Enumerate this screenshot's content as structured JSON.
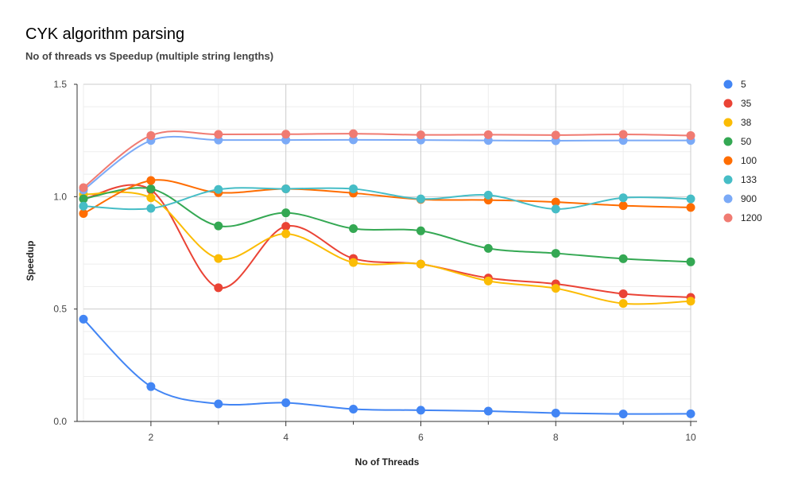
{
  "chart_data": {
    "type": "line",
    "title": "CYK algorithm parsing",
    "subtitle": "No of threads vs Speedup (multiple string lengths)",
    "xlabel": "No of Threads",
    "ylabel": "Speedup",
    "x": [
      1,
      2,
      3,
      4,
      5,
      6,
      7,
      8,
      9,
      10
    ],
    "xlim": [
      1,
      10
    ],
    "ylim": [
      0,
      1.5
    ],
    "xticks": [
      2,
      4,
      6,
      8,
      10
    ],
    "yticks": [
      0,
      0.5,
      1.0,
      1.5
    ],
    "ytick_labels": [
      "0.0",
      "0.5",
      "1.0",
      "1.5"
    ],
    "grid": true,
    "legend_position": "right",
    "series": [
      {
        "name": "5",
        "color": "#4285F4",
        "values": [
          0.455,
          0.155,
          0.078,
          0.083,
          0.055,
          0.05,
          0.046,
          0.037,
          0.033,
          0.034
        ]
      },
      {
        "name": "35",
        "color": "#EA4335",
        "values": [
          0.99,
          1.03,
          0.595,
          0.868,
          0.725,
          0.7,
          0.638,
          0.612,
          0.568,
          0.552
        ]
      },
      {
        "name": "38",
        "color": "#FBBC04",
        "values": [
          1.01,
          0.995,
          0.725,
          0.835,
          0.707,
          0.7,
          0.625,
          0.592,
          0.525,
          0.535
        ]
      },
      {
        "name": "50",
        "color": "#34A853",
        "values": [
          0.99,
          1.035,
          0.87,
          0.928,
          0.858,
          0.848,
          0.77,
          0.748,
          0.724,
          0.71
        ]
      },
      {
        "name": "100",
        "color": "#FF6D01",
        "values": [
          0.925,
          1.072,
          1.018,
          1.035,
          1.016,
          0.988,
          0.985,
          0.976,
          0.96,
          0.952
        ]
      },
      {
        "name": "133",
        "color": "#46BDC6",
        "values": [
          0.958,
          0.948,
          1.032,
          1.035,
          1.035,
          0.99,
          1.007,
          0.945,
          0.995,
          0.99
        ]
      },
      {
        "name": "900",
        "color": "#7BAAF7",
        "values": [
          1.03,
          1.25,
          1.252,
          1.252,
          1.253,
          1.252,
          1.25,
          1.249,
          1.25,
          1.25
        ]
      },
      {
        "name": "1200",
        "color": "#F07B72",
        "values": [
          1.04,
          1.272,
          1.277,
          1.278,
          1.28,
          1.275,
          1.276,
          1.274,
          1.277,
          1.272
        ]
      }
    ]
  }
}
